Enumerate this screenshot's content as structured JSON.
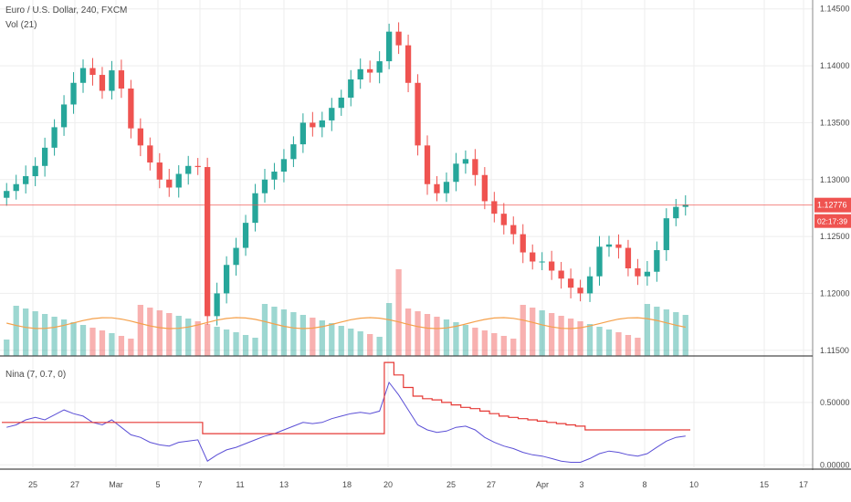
{
  "chart_data": {
    "type": "candlestick",
    "title": "Euro / U.S. Dollar, 240, FXCM",
    "symbol": "Euro / U.S. Dollar",
    "interval": "240",
    "source": "FXCM",
    "volume_label": "Vol (21)",
    "price_axis": {
      "ticks": [
        "1.14500",
        "1.14000",
        "1.13500",
        "1.13000",
        "1.12500",
        "1.12000",
        "1.11500"
      ],
      "range": [
        1.1145,
        1.1453
      ]
    },
    "last_price": {
      "value": "1.12776",
      "countdown": "02:17:39",
      "color": "#ef5350"
    },
    "x_axis": {
      "ticks": [
        "25",
        "27",
        "Mar",
        "5",
        "7",
        "11",
        "13",
        "18",
        "20",
        "25",
        "27",
        "Apr",
        "3",
        "8",
        "10",
        "15",
        "17"
      ]
    },
    "closes": [
      1.129,
      1.1296,
      1.1303,
      1.1312,
      1.1328,
      1.1346,
      1.1366,
      1.1385,
      1.1398,
      1.1392,
      1.1378,
      1.1396,
      1.138,
      1.1345,
      1.133,
      1.1315,
      1.13,
      1.1293,
      1.1305,
      1.1312,
      1.1311,
      1.118,
      1.12,
      1.1225,
      1.124,
      1.1262,
      1.1288,
      1.13,
      1.1307,
      1.1318,
      1.1331,
      1.135,
      1.1346,
      1.1352,
      1.1363,
      1.1372,
      1.1388,
      1.1397,
      1.1394,
      1.1404,
      1.143,
      1.1418,
      1.1385,
      1.133,
      1.1296,
      1.1288,
      1.1298,
      1.1314,
      1.1318,
      1.1304,
      1.1281,
      1.127,
      1.126,
      1.1252,
      1.1236,
      1.1228,
      1.1228,
      1.122,
      1.1213,
      1.1205,
      1.12,
      1.1215,
      1.1241,
      1.1243,
      1.124,
      1.1222,
      1.1215,
      1.1219,
      1.1238,
      1.1266,
      1.1276,
      1.1278
    ],
    "nina_indicator": {
      "label": "Nina (7, 0.7, 0)",
      "axis_ticks": [
        "0.50000",
        "0.00000"
      ],
      "line_blue": [
        0.3,
        0.32,
        0.36,
        0.38,
        0.36,
        0.4,
        0.44,
        0.41,
        0.39,
        0.34,
        0.32,
        0.36,
        0.3,
        0.24,
        0.22,
        0.18,
        0.16,
        0.15,
        0.18,
        0.19,
        0.2,
        0.03,
        0.08,
        0.12,
        0.14,
        0.17,
        0.2,
        0.23,
        0.25,
        0.28,
        0.31,
        0.34,
        0.33,
        0.34,
        0.37,
        0.39,
        0.41,
        0.42,
        0.41,
        0.43,
        0.66,
        0.56,
        0.44,
        0.32,
        0.28,
        0.26,
        0.27,
        0.3,
        0.31,
        0.28,
        0.22,
        0.18,
        0.15,
        0.13,
        0.1,
        0.08,
        0.07,
        0.05,
        0.03,
        0.02,
        0.02,
        0.05,
        0.09,
        0.11,
        0.1,
        0.08,
        0.07,
        0.09,
        0.14,
        0.19,
        0.22,
        0.23
      ],
      "line_red": [
        0.34,
        0.34,
        0.34,
        0.34,
        0.34,
        0.34,
        0.34,
        0.34,
        0.34,
        0.34,
        0.34,
        0.34,
        0.34,
        0.34,
        0.34,
        0.34,
        0.34,
        0.34,
        0.34,
        0.34,
        0.34,
        0.25,
        0.25,
        0.25,
        0.25,
        0.25,
        0.25,
        0.25,
        0.25,
        0.25,
        0.25,
        0.25,
        0.25,
        0.25,
        0.25,
        0.25,
        0.25,
        0.25,
        0.25,
        0.25,
        0.82,
        0.72,
        0.62,
        0.55,
        0.53,
        0.52,
        0.5,
        0.48,
        0.46,
        0.45,
        0.43,
        0.41,
        0.39,
        0.38,
        0.37,
        0.36,
        0.35,
        0.34,
        0.33,
        0.32,
        0.31,
        0.28,
        0.28,
        0.28,
        0.28,
        0.28,
        0.28,
        0.28,
        0.28,
        0.28,
        0.28,
        0.28
      ],
      "range": [
        -0.02,
        0.85
      ]
    },
    "colors": {
      "up": "#26a69a",
      "down": "#ef5350",
      "blue_line": "#5b4fd6",
      "red_line": "#e53935",
      "volume_ma": "#f5a04a"
    }
  }
}
